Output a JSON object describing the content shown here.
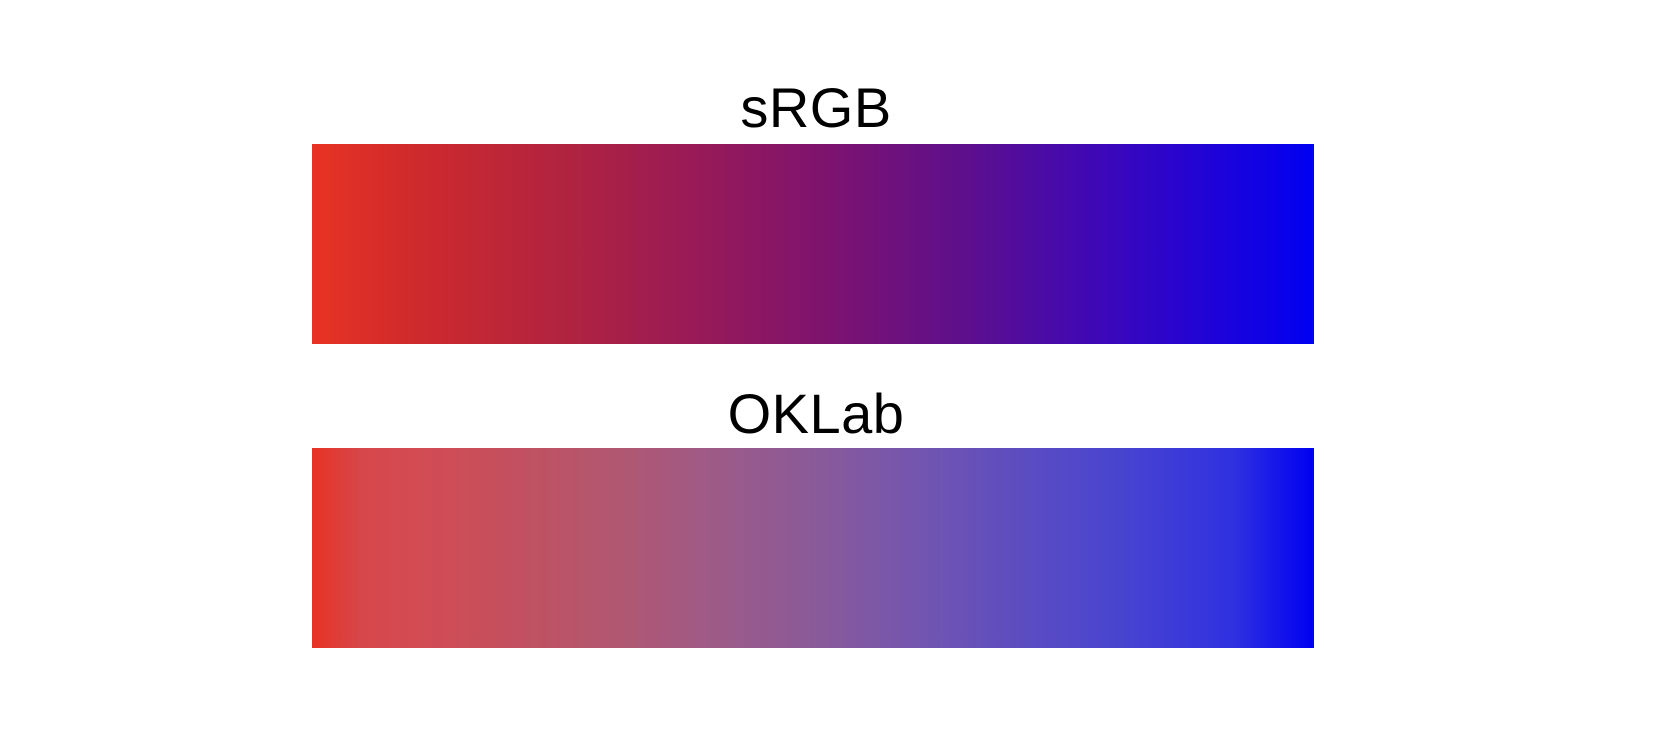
{
  "gradients": [
    {
      "label": "sRGB",
      "from_color": "#e83324",
      "to_color": "#0000f2"
    },
    {
      "label": "OKLab",
      "from_color": "#e83324",
      "to_color": "#0000f2"
    }
  ]
}
